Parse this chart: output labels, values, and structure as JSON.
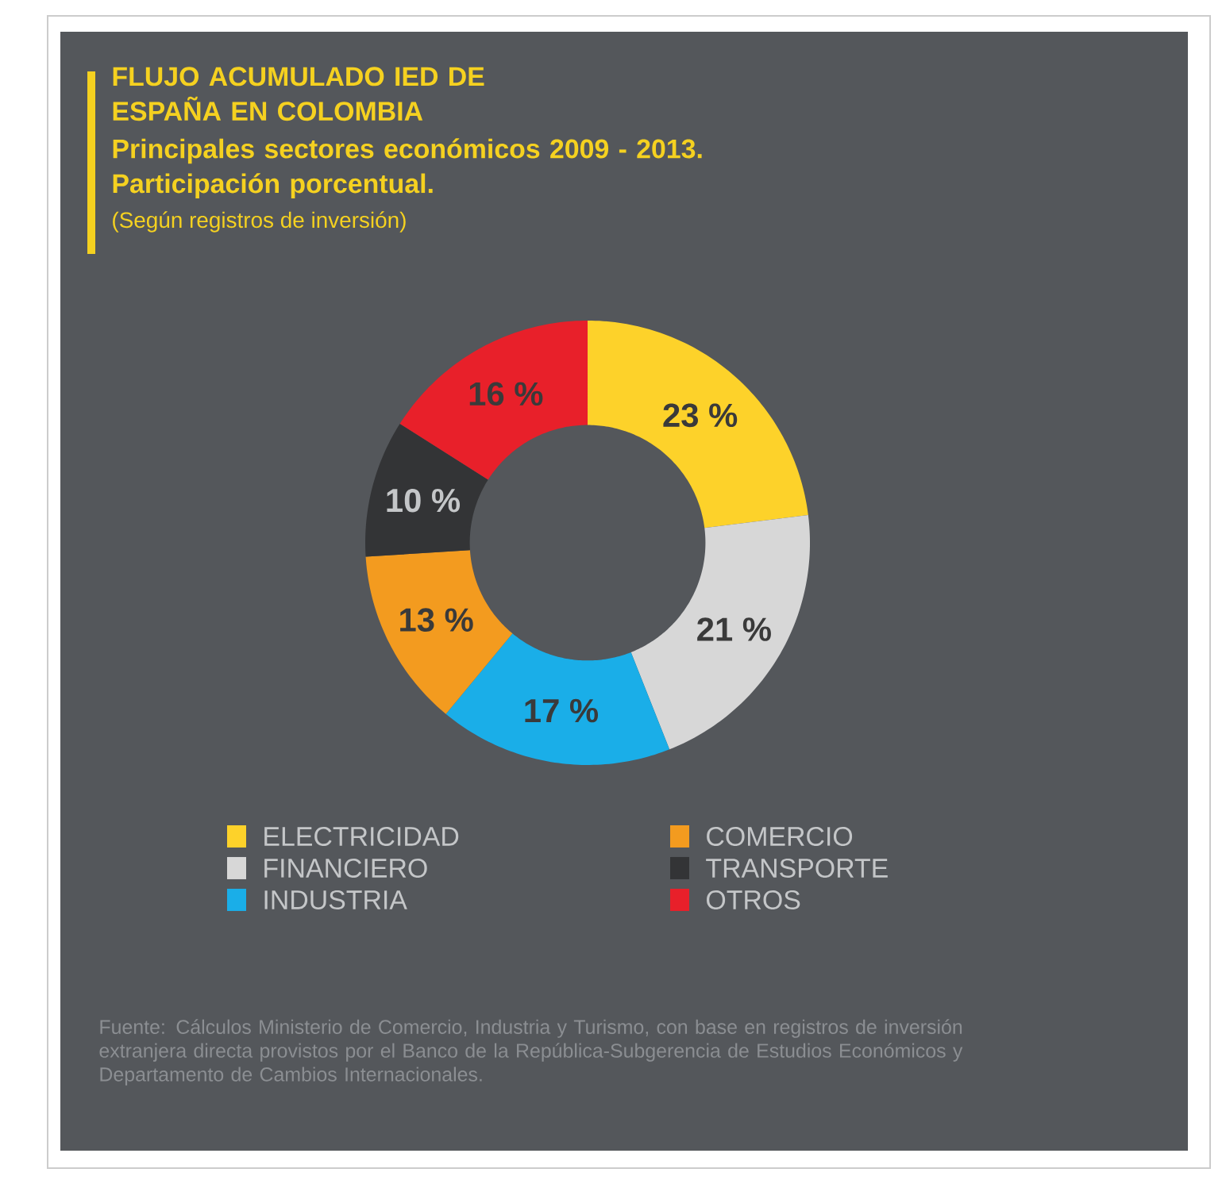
{
  "chart_data": {
    "type": "donut",
    "title": "FLUJO ACUMULADO IED DE ESPAÑA EN COLOMBIA",
    "subtitle": "Principales sectores económicos 2009 - 2013. Participación porcentual.",
    "categories": [
      "ELECTRICIDAD",
      "FINANCIERO",
      "INDUSTRIA",
      "COMERCIO",
      "TRANSPORTE",
      "OTROS"
    ],
    "values": [
      23,
      21,
      17,
      13,
      10,
      16
    ],
    "value_labels": [
      "23 %",
      "21 %",
      "17 %",
      "13 %",
      "10 %",
      "16 %"
    ],
    "colors": [
      "#fdd22a",
      "#d7d7d7",
      "#1aaee8",
      "#f39b1f",
      "#333436",
      "#e8202a"
    ],
    "legend": "bottom",
    "annotations": [
      "(Según registros de inversión)",
      "Fuente: Cálculos Ministerio de Comercio, Industria y Turismo, con base en registros de inversión extranjera directa provistos por el Banco de la República-Subgerencia de Estudios Económicos y Departamento de Cambios Internacionales."
    ]
  }
}
